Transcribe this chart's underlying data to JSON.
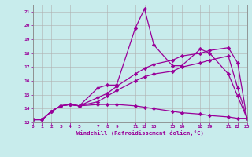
{
  "title": "",
  "xlabel": "Windchill (Refroidissement éolien,°C)",
  "ylabel": "",
  "bg_color": "#c8ecec",
  "line_color": "#990099",
  "grid_color": "#b0b0b0",
  "xlim": [
    0,
    23
  ],
  "ylim": [
    13,
    21.5
  ],
  "xticks": [
    0,
    1,
    2,
    3,
    4,
    5,
    7,
    8,
    9,
    11,
    12,
    13,
    15,
    16,
    18,
    19,
    21,
    22,
    23
  ],
  "xtick_labels": [
    "0",
    "1",
    "2",
    "3",
    "4",
    "5",
    "7",
    "8",
    "9",
    "11",
    "12",
    "13",
    "15",
    "16",
    "18",
    "19",
    "21",
    "22",
    "23"
  ],
  "yticks": [
    13,
    14,
    15,
    16,
    17,
    18,
    19,
    20,
    21
  ],
  "lines": [
    {
      "x": [
        0,
        1,
        2,
        3,
        4,
        5,
        7,
        8,
        9,
        11,
        12,
        13,
        15,
        16,
        18,
        19,
        21,
        22,
        23
      ],
      "y": [
        13.2,
        13.2,
        13.8,
        14.2,
        14.3,
        14.2,
        15.5,
        15.7,
        15.7,
        19.8,
        21.2,
        18.6,
        17.1,
        17.1,
        18.3,
        18.0,
        16.5,
        14.9,
        13.3
      ]
    },
    {
      "x": [
        0,
        1,
        2,
        3,
        4,
        5,
        7,
        8,
        9,
        11,
        12,
        13,
        15,
        16,
        18,
        19,
        21,
        22,
        23
      ],
      "y": [
        13.2,
        13.2,
        13.8,
        14.2,
        14.3,
        14.2,
        14.8,
        15.1,
        15.6,
        16.5,
        16.9,
        17.2,
        17.5,
        17.8,
        18.0,
        18.2,
        18.4,
        17.3,
        13.3
      ]
    },
    {
      "x": [
        0,
        1,
        2,
        3,
        4,
        5,
        7,
        8,
        9,
        11,
        12,
        13,
        15,
        16,
        18,
        19,
        21,
        22,
        23
      ],
      "y": [
        13.2,
        13.2,
        13.8,
        14.2,
        14.3,
        14.2,
        14.3,
        14.3,
        14.3,
        14.2,
        14.1,
        14.0,
        13.8,
        13.7,
        13.6,
        13.5,
        13.4,
        13.3,
        13.3
      ]
    },
    {
      "x": [
        0,
        1,
        2,
        3,
        4,
        5,
        7,
        8,
        9,
        11,
        12,
        13,
        15,
        16,
        18,
        19,
        21,
        22,
        23
      ],
      "y": [
        13.2,
        13.2,
        13.8,
        14.2,
        14.3,
        14.2,
        14.5,
        14.9,
        15.3,
        16.0,
        16.3,
        16.5,
        16.7,
        17.0,
        17.3,
        17.5,
        17.8,
        15.5,
        13.3
      ]
    }
  ]
}
